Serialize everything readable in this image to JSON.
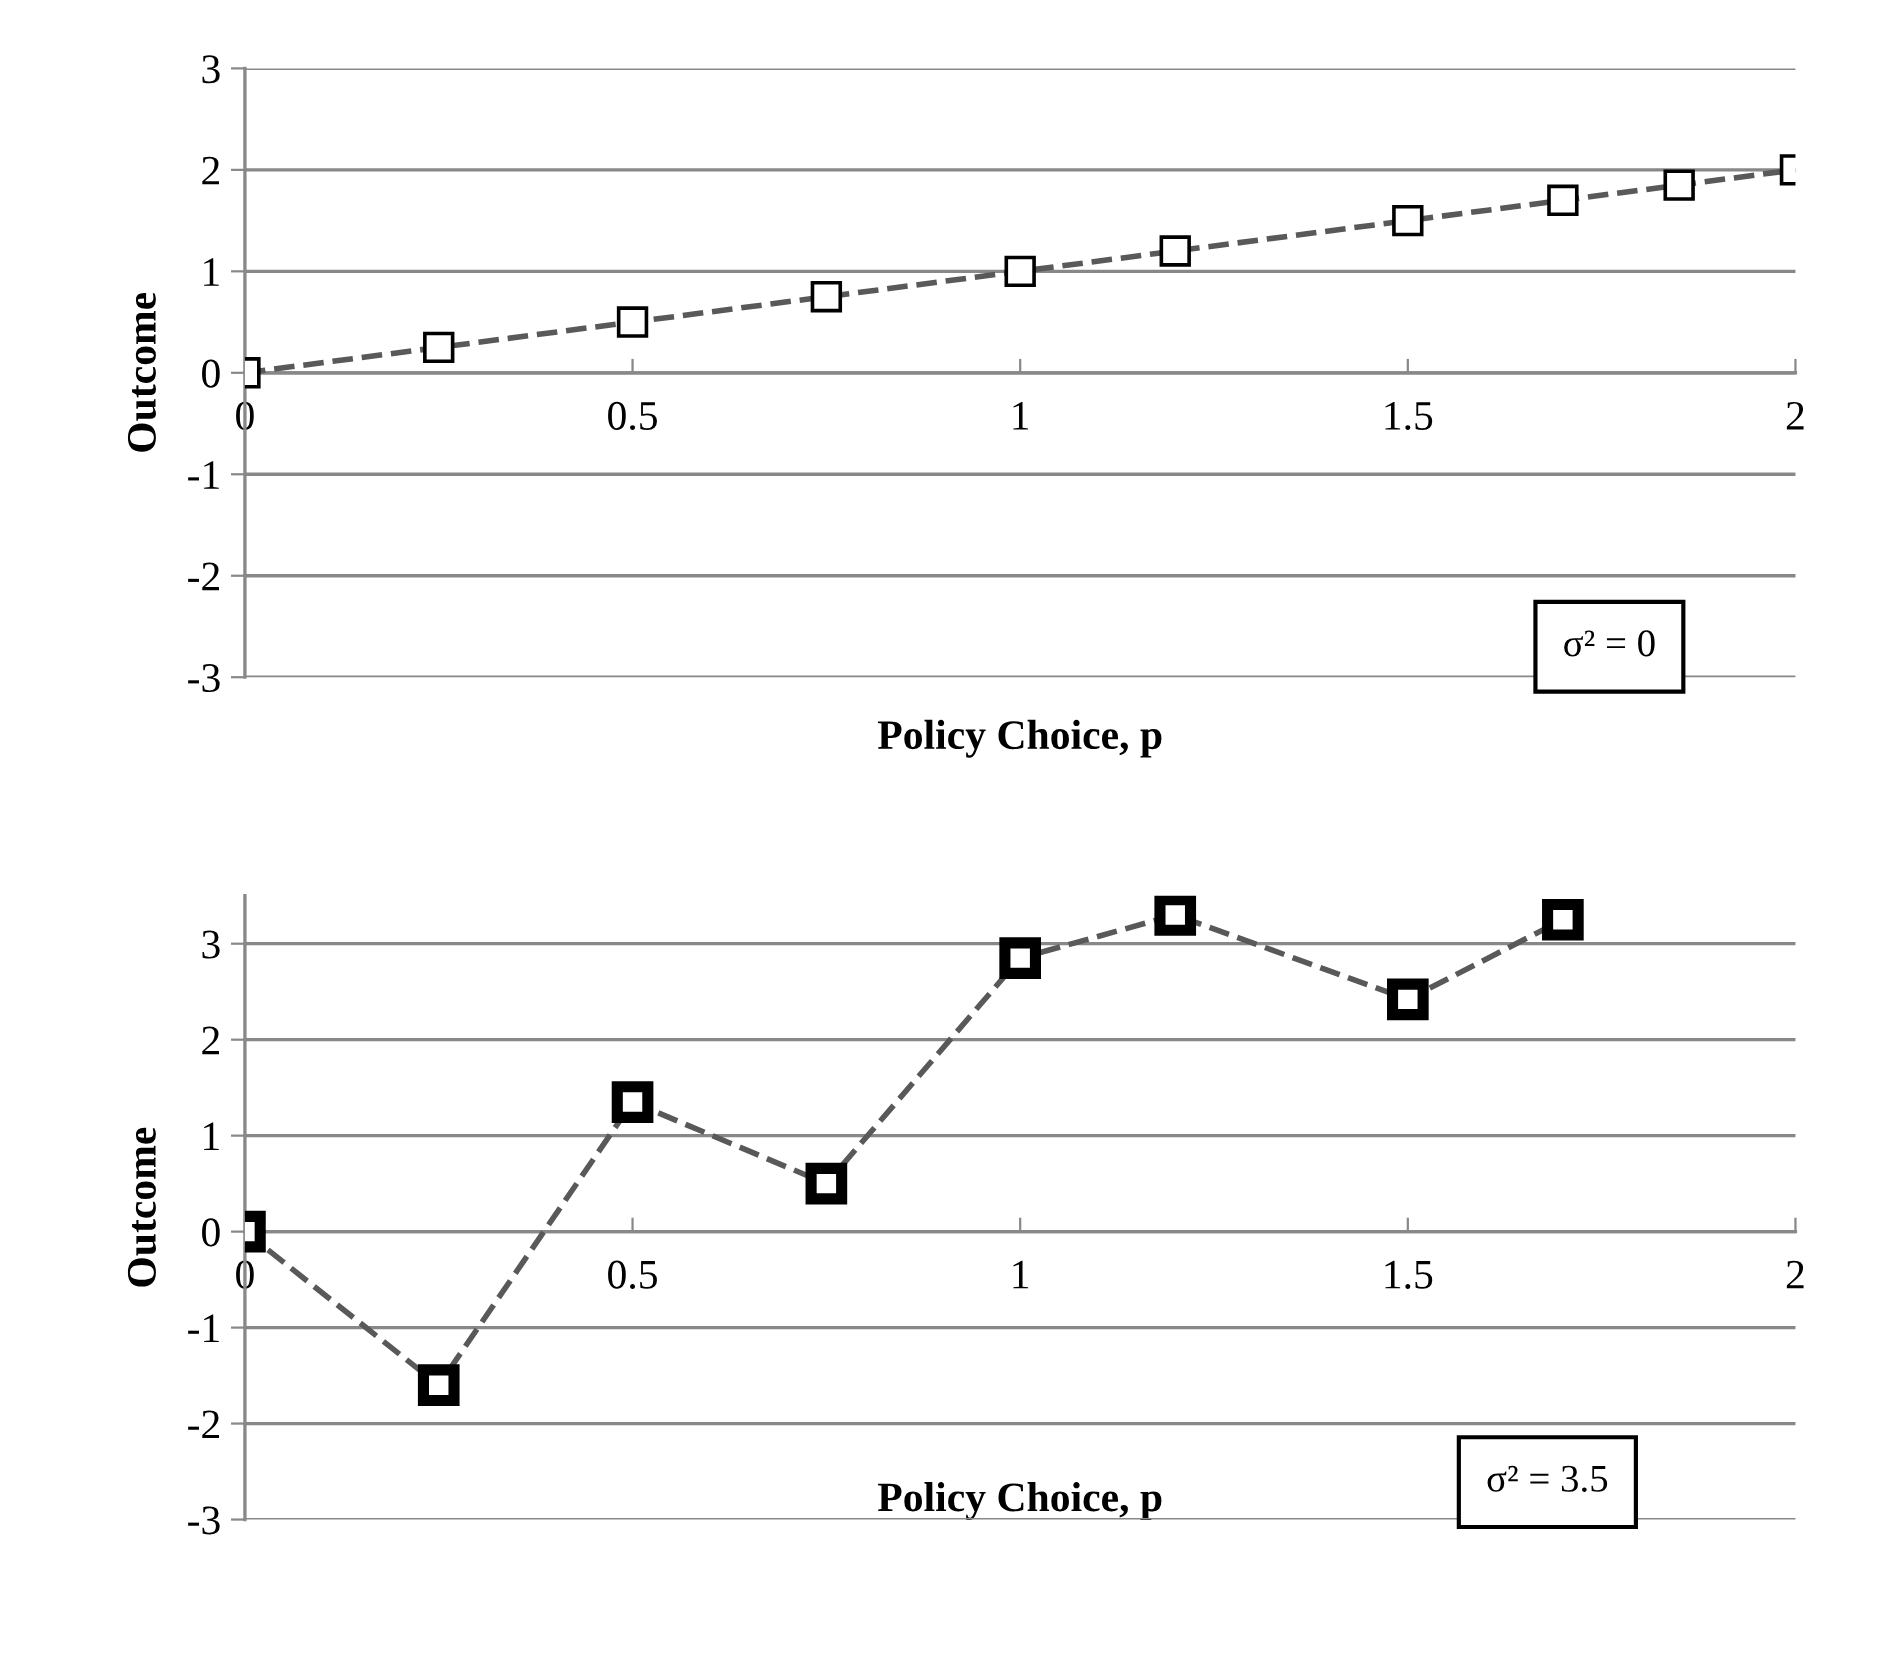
{
  "chart_data": [
    {
      "type": "line",
      "xlabel": "Policy Choice, p",
      "ylabel": "Outcome",
      "xlim": [
        0,
        2
      ],
      "ylim": [
        -3,
        3
      ],
      "xticks": [
        0,
        0.5,
        1,
        1.5,
        2
      ],
      "yticks": [
        -3,
        -2,
        -1,
        0,
        1,
        2,
        3
      ],
      "grid": "y",
      "marker": "square",
      "line_style": "dashed",
      "legend": false,
      "annotations": [
        "σ² = 0"
      ],
      "series": [
        {
          "color": "#595959",
          "x": [
            0,
            0.25,
            0.5,
            0.75,
            1,
            1.2,
            1.5,
            1.7,
            1.85,
            2
          ],
          "values": [
            0,
            0.25,
            0.5,
            0.75,
            1,
            1.2,
            1.5,
            1.7,
            1.85,
            2
          ]
        }
      ]
    },
    {
      "type": "line",
      "xlabel": "Policy Choice, p",
      "ylabel": "Outcome",
      "xlim": [
        0,
        2
      ],
      "ylim": [
        -3,
        3.5
      ],
      "xticks": [
        0,
        0.5,
        1,
        1.5,
        2
      ],
      "yticks": [
        -3,
        -2,
        -1,
        0,
        1,
        2,
        3
      ],
      "grid": "y",
      "marker": "square",
      "line_style": "dashed",
      "legend": false,
      "annotations": [
        "σ² = 3.5"
      ],
      "series": [
        {
          "color": "#595959",
          "x": [
            0,
            0.25,
            0.5,
            0.75,
            1,
            1.2,
            1.5,
            1.7
          ],
          "values": [
            0,
            -1.6,
            1.35,
            0.5,
            2.85,
            3.3,
            2.42,
            3.25
          ]
        }
      ]
    }
  ]
}
